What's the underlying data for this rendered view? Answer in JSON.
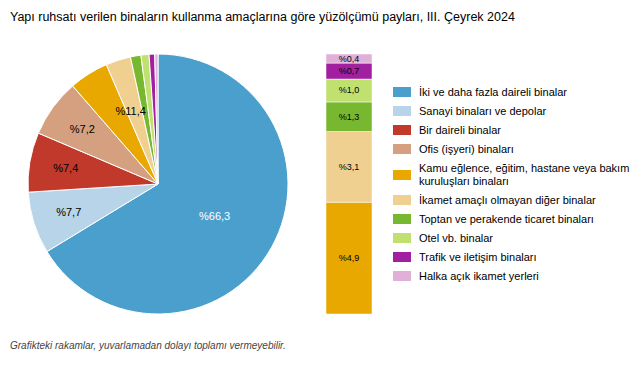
{
  "chart_data": [
    {
      "type": "pie",
      "title": "Yapı ruhsatı verilen binaların kullanma amaçlarına göre yüzölçümü payları, III. Çeyrek 2024",
      "footnote": "Grafikteki rakamlar, yuvarlamadan dolayı toplamı vermeyebilir.",
      "categories": [
        "İki ve daha fazla daireli binalar",
        "Sanayi binaları ve depolar",
        "Bir daireli binalar",
        "Ofis (işyeri) binaları",
        "Kamu eğlence, eğitim, hastane veya bakım kuruluşları binaları",
        "İkamet amaçlı olmayan diğer binalar",
        "Toptan ve perakende ticaret binaları",
        "Otel vb. binalar",
        "Trafik ve iletişim binaları",
        "Halka açık ikamet yerleri"
      ],
      "values": [
        66.3,
        7.7,
        7.4,
        7.2,
        4.9,
        3.1,
        1.3,
        1.0,
        0.7,
        0.4
      ],
      "colors": [
        "#4a9fcd",
        "#b8d4e8",
        "#c0392b",
        "#d4a080",
        "#e8a800",
        "#f0d090",
        "#78b830",
        "#c0e070",
        "#a020a0",
        "#e0b0d8"
      ],
      "value_labels": [
        "%66,3",
        "%7,7",
        "%7,4",
        "%7,2",
        null,
        null,
        null,
        null,
        null,
        null
      ],
      "data_labels": true,
      "annotations": [
        "%11,4"
      ],
      "legend": "right"
    },
    {
      "type": "bar",
      "stacked": true,
      "categories": [
        null
      ],
      "series": [
        {
          "name": "Kamu eğlence, eğitim, hastane veya bakım kuruluşları binaları",
          "color": "#e8a800",
          "values": [
            4.9
          ],
          "value_labels": [
            "%4,9"
          ]
        },
        {
          "name": "İkamet amaçlı olmayan diğer binalar",
          "color": "#f0d090",
          "values": [
            3.1
          ],
          "value_labels": [
            "%3,1"
          ]
        },
        {
          "name": "Toptan ve perakende ticaret binaları",
          "color": "#78b830",
          "values": [
            1.3
          ],
          "value_labels": [
            "%1,3"
          ]
        },
        {
          "name": "Otel vb. binalar",
          "color": "#c0e070",
          "values": [
            1.0
          ],
          "value_labels": [
            "%1,0"
          ]
        },
        {
          "name": "Trafik ve iletişim binaları",
          "color": "#a020a0",
          "values": [
            0.7
          ],
          "value_labels": [
            "%0,7"
          ]
        },
        {
          "name": "Halka açık ikamet yerleri",
          "color": "#e0b0d8",
          "values": [
            0.4
          ],
          "value_labels": [
            "%0,4"
          ]
        }
      ],
      "ylim": [
        0,
        11.4
      ],
      "data_labels": true,
      "tick_labels": false
    }
  ]
}
